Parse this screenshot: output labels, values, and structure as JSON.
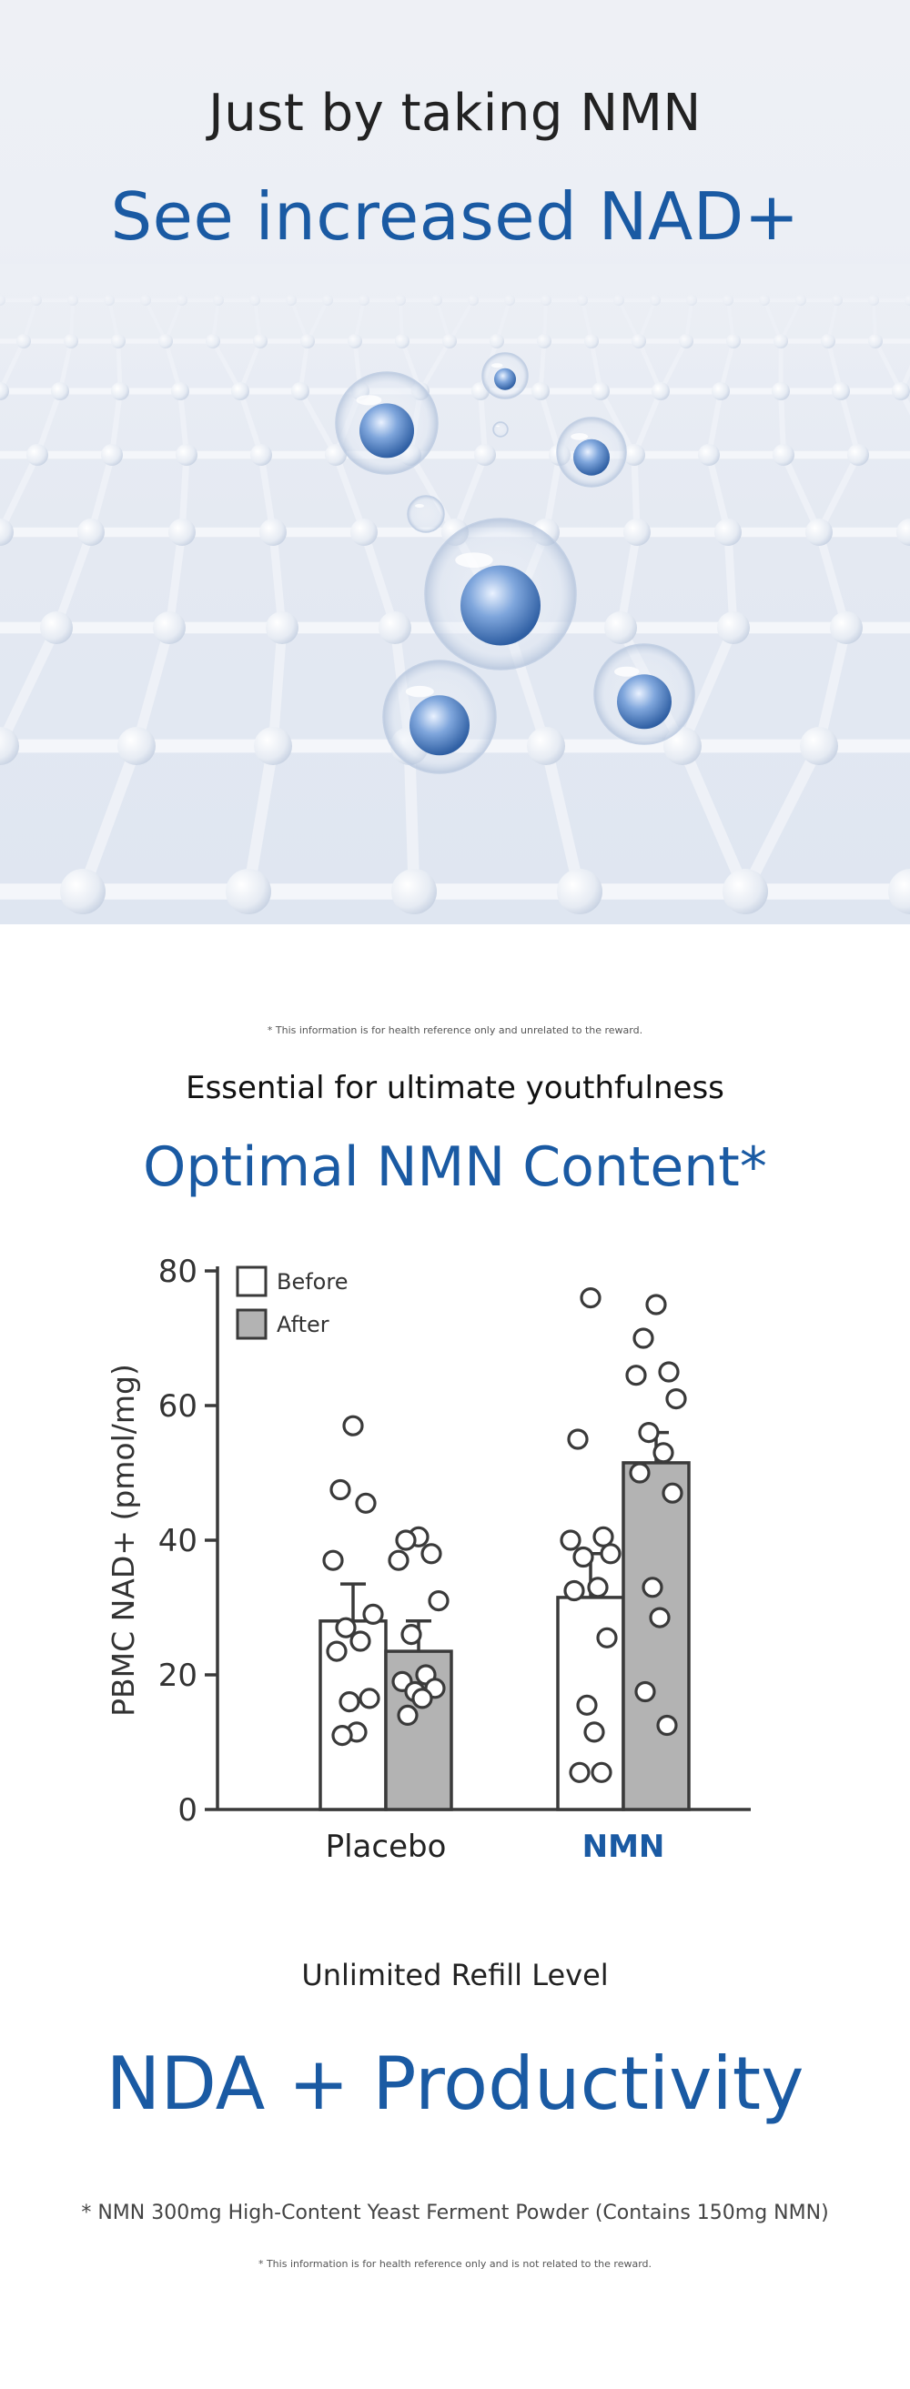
{
  "hero": {
    "subtitle": "Just by taking NMN",
    "title": "See increased NAD+"
  },
  "section2": {
    "note": "* This information is for health reference only and unrelated to the reward.",
    "subtitle": "Essential for ultimate youthfulness",
    "title": "Optimal NMN Content*"
  },
  "chart_data": {
    "type": "bar",
    "ylabel": "PBMC NAD+ (pmol/mg)",
    "ylim": [
      0,
      80
    ],
    "yticks": [
      0,
      20,
      40,
      60,
      80
    ],
    "categories": [
      "Placebo",
      "NMN"
    ],
    "legend": {
      "position": "top-left",
      "entries": [
        "Before",
        "After"
      ]
    },
    "series": [
      {
        "name": "Before",
        "color": "#ffffff",
        "values": [
          28,
          31.5
        ],
        "error": [
          5.5,
          6.5
        ],
        "points": [
          [
            57,
            47.5,
            45.5,
            37,
            29,
            27,
            25,
            23.5,
            16.5,
            16,
            11.5,
            11
          ],
          [
            76,
            55,
            40.5,
            40,
            38,
            37.5,
            33,
            32.5,
            25.5,
            15.5,
            11.5,
            5.5,
            5.5
          ]
        ]
      },
      {
        "name": "After",
        "color": "#b3b3b3",
        "values": [
          23.5,
          51.5
        ],
        "error": [
          4.5,
          4.5
        ],
        "points": [
          [
            40.5,
            40,
            38,
            37,
            31,
            26,
            20,
            19,
            18,
            17.5,
            16.5,
            14
          ],
          [
            75,
            70,
            65,
            64.5,
            61,
            56,
            53,
            50,
            47,
            33,
            28.5,
            17.5,
            12.5
          ]
        ]
      }
    ],
    "highlight_category": "NMN",
    "highlight_color": "#1a5aa3"
  },
  "section3": {
    "subtitle": "Unlimited Refill Level",
    "title": "NDA + Productivity",
    "footnote": "* NMN 300mg High-Content Yeast Ferment Powder (Contains 150mg NMN)",
    "note": "* This information is for health reference only and is not related to the reward."
  }
}
